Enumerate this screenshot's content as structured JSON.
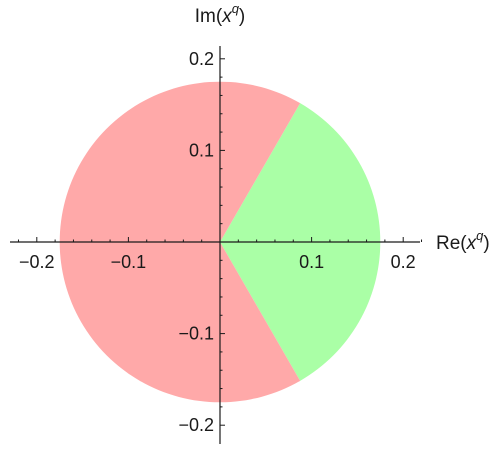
{
  "chart_data": {
    "type": "pie",
    "title": "",
    "xlabel": "Re",
    "ylabel": "Im",
    "axis_label_arg": "x",
    "axis_label_sup": "q",
    "xlim": [
      -0.23,
      0.22
    ],
    "ylim": [
      -0.215,
      0.215
    ],
    "radius": 0.175,
    "x_ticks": [
      {
        "value": -0.2,
        "label": "−0.2"
      },
      {
        "value": -0.1,
        "label": "−0.1"
      },
      {
        "value": 0.1,
        "label": "0.1"
      },
      {
        "value": 0.2,
        "label": "0.2"
      }
    ],
    "y_ticks": [
      {
        "value": 0.2,
        "label": "0.2"
      },
      {
        "value": 0.1,
        "label": "0.1"
      },
      {
        "value": -0.1,
        "label": "−0.1"
      },
      {
        "value": -0.2,
        "label": "−0.2"
      }
    ],
    "minor_tick_step": 0.02,
    "sectors": [
      {
        "start_angle_deg": -60,
        "end_angle_deg": 60,
        "color": "#aaffa6"
      },
      {
        "start_angle_deg": 60,
        "end_angle_deg": 300,
        "color": "#ffa9a9"
      }
    ]
  }
}
